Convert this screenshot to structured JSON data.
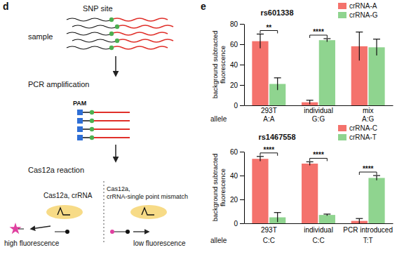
{
  "panel_labels": [
    "d",
    "e"
  ],
  "diagram": {
    "snp_site": "SNP site",
    "sample": "sample",
    "pcr": "PCR amplification",
    "pam": "PAM",
    "reaction": "Cas12a reaction",
    "match_label": "Cas12a, crRNA",
    "mismatch_label": [
      "Cas12a,",
      "crRNA-single point mismatch"
    ],
    "high": "high fluorescence",
    "low": "low fluorescence"
  },
  "chart_data": [
    {
      "type": "bar",
      "title": "rs601338",
      "y_label": "background subtracted fluorescence",
      "categories": [
        "293T",
        "individual",
        "mix"
      ],
      "row_label": "allele",
      "row_values": [
        "A:A",
        "G:G",
        "A:G"
      ],
      "series": [
        {
          "name": "crRNA-A",
          "color": "#f4726c",
          "values": [
            63,
            3,
            58
          ],
          "errors": [
            7,
            2,
            14
          ]
        },
        {
          "name": "crRNA-G",
          "color": "#8fd48f",
          "values": [
            21,
            64,
            57
          ],
          "errors": [
            6,
            1.5,
            8
          ]
        }
      ],
      "ylim": [
        0,
        80
      ],
      "yticks": [
        0,
        20,
        40,
        60,
        80
      ],
      "legend": "top-right",
      "significance": [
        {
          "category": 0,
          "label": "**"
        },
        {
          "category": 1,
          "label": "****"
        }
      ]
    },
    {
      "type": "bar",
      "title": "rs1467558",
      "y_label": "background subtracted fluorescence",
      "categories": [
        "293T",
        "individual",
        "PCR introduced"
      ],
      "row_label": "allele",
      "row_values": [
        "C:C",
        "C:C",
        "T:T"
      ],
      "series": [
        {
          "name": "crRNA-C",
          "color": "#f4726c",
          "values": [
            54,
            50,
            2
          ],
          "errors": [
            2,
            1.5,
            2
          ]
        },
        {
          "name": "crRNA-T",
          "color": "#8fd48f",
          "values": [
            5,
            7,
            38
          ],
          "errors": [
            4,
            0.7,
            2
          ]
        }
      ],
      "ylim": [
        0,
        60
      ],
      "yticks": [
        0,
        20,
        40,
        60
      ],
      "legend": "top-right",
      "significance": [
        {
          "category": 0,
          "label": "****"
        },
        {
          "category": 1,
          "label": "****"
        },
        {
          "category": 2,
          "label": "****"
        }
      ]
    }
  ]
}
